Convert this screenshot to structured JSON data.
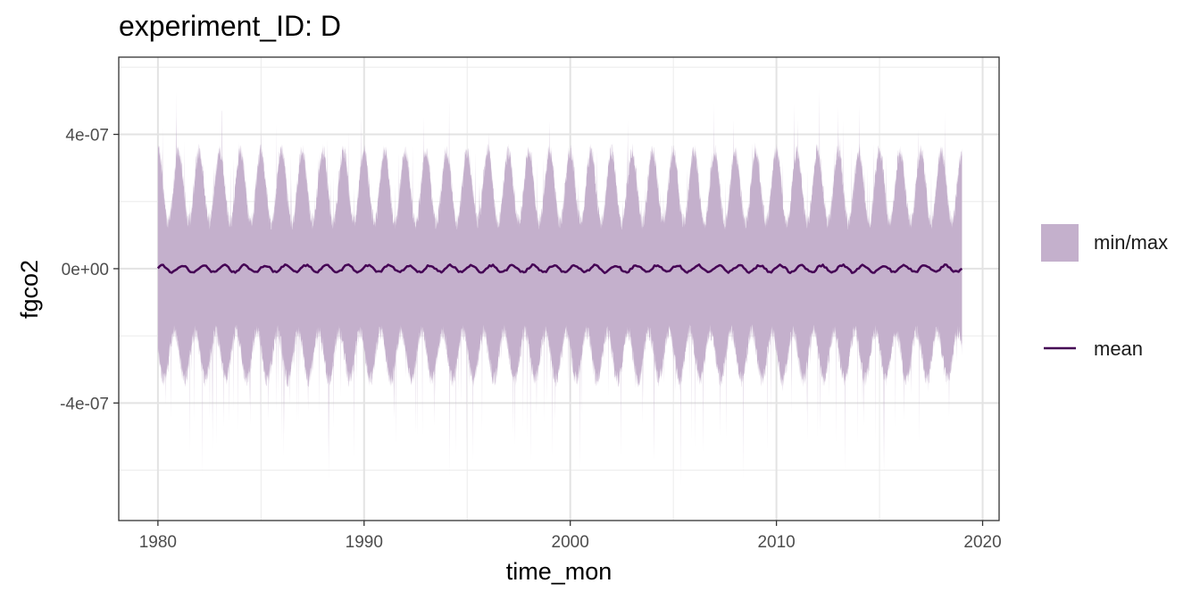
{
  "chart_data": {
    "type": "area",
    "title": "experiment_ID: D",
    "xlabel": "time_mon",
    "ylabel": "fgco2",
    "x_range": [
      1980,
      2019
    ],
    "xlim": [
      1978.1,
      2020.8
    ],
    "ylim": [
      -7.5e-07,
      6.3e-07
    ],
    "x_ticks": [
      1980,
      1990,
      2000,
      2010,
      2020
    ],
    "x_tick_labels": [
      "1980",
      "1990",
      "2000",
      "2010",
      "2020"
    ],
    "y_ticks": [
      -4e-07,
      0,
      4e-07
    ],
    "y_tick_labels": [
      "-4e-07",
      "0e+00",
      "4e-07"
    ],
    "grid": true,
    "legend_position": "right",
    "colors": {
      "band": "#c4b0cc",
      "mean": "#440154"
    },
    "series": [
      {
        "name": "min/max",
        "kind": "band",
        "approx_max_envelope": {
          "seasonal_peak": 3.5e-07,
          "seasonal_trough": 1.4e-07,
          "max_spike": 5.6e-07
        },
        "approx_min_envelope": {
          "seasonal_high": -1.9e-07,
          "seasonal_low": -3.3e-07,
          "min_spike": -6.5e-07
        }
      },
      {
        "name": "mean",
        "kind": "line",
        "approx_mean": 0.0,
        "approx_seasonal_amplitude": 1e-08
      }
    ]
  }
}
